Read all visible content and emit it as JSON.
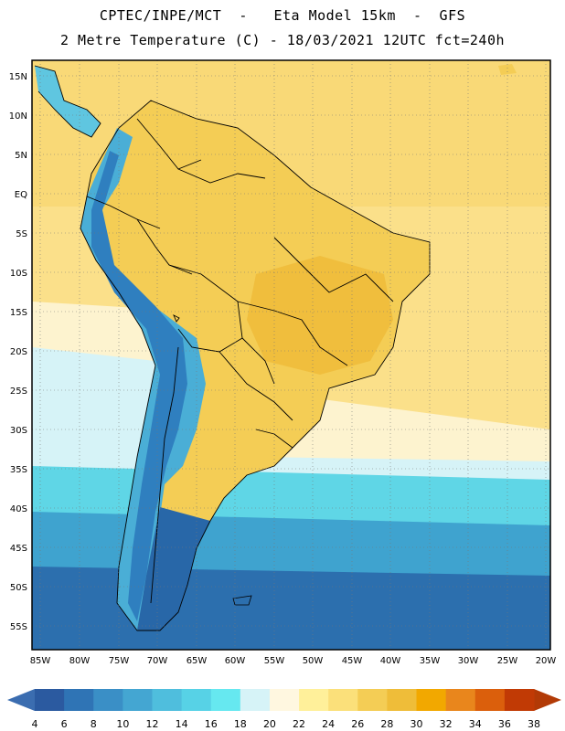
{
  "header": {
    "title_line1": "CPTEC/INPE/MCT  -   Eta Model 15km  -  GFS",
    "title_line2": "2 Metre Temperature (C) - 18/03/2021 12UTC fct=240h"
  },
  "map": {
    "lat_labels": [
      "15N",
      "10N",
      "5N",
      "EQ",
      "5S",
      "10S",
      "15S",
      "20S",
      "25S",
      "30S",
      "35S",
      "40S",
      "45S",
      "50S",
      "55S"
    ],
    "lon_labels": [
      "85W",
      "80W",
      "75W",
      "70W",
      "65W",
      "60W",
      "55W",
      "50W",
      "45W",
      "40W",
      "35W",
      "30W",
      "25W",
      "20W"
    ],
    "colors": {
      "ocean_tropical": "#fbe08a",
      "land_warm": "#f4cd55",
      "land_hot": "#efc048",
      "andes_cold": "#5ec7e0",
      "south_cold": "#2e86c1",
      "far_south": "#2467a8",
      "border": "#000000",
      "grid": "#8a8a8a"
    }
  },
  "colorbar": {
    "labels": [
      "4",
      "6",
      "8",
      "10",
      "12",
      "14",
      "16",
      "18",
      "20",
      "22",
      "24",
      "26",
      "28",
      "30",
      "32",
      "34",
      "36",
      "38"
    ],
    "colors": [
      "#2b5aa0",
      "#2f74b5",
      "#3a8fc6",
      "#44a6d2",
      "#4fbedd",
      "#57d2e6",
      "#66e8f0",
      "#d6f3f7",
      "#fff7e0",
      "#fff09a",
      "#fbe07a",
      "#f4cd55",
      "#efbd39",
      "#f2a800",
      "#e9861c",
      "#db5f0c",
      "#c13a05"
    ],
    "left_arrow_color": "#3b6db0",
    "right_arrow_color": "#b23a06"
  }
}
